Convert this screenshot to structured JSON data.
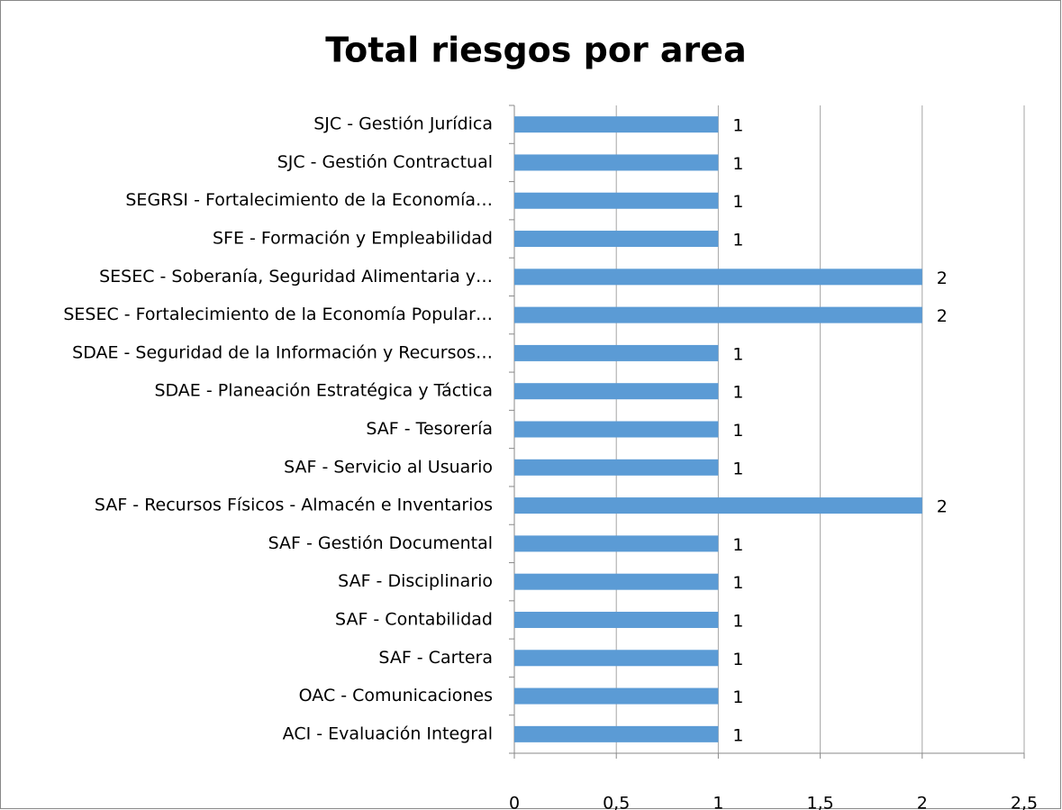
{
  "chart_data": {
    "type": "bar",
    "title": "Total riesgos por area",
    "categories": [
      "SJC - Gestión Jurídica",
      "SJC - Gestión Contractual",
      "SEGRSI - Fortalecimiento de la Economía…",
      "SFE - Formación y Empleabilidad",
      "SESEC - Soberanía, Seguridad Alimentaria y…",
      "SESEC -  Fortalecimiento de la Economía Popular…",
      "SDAE - Seguridad de la Información y Recursos…",
      "SDAE - Planeación Estratégica y Táctica",
      "SAF - Tesorería",
      "SAF - Servicio al Usuario",
      "SAF - Recursos Físicos - Almacén e Inventarios",
      "SAF - Gestión Documental",
      "SAF - Disciplinario",
      "SAF - Contabilidad",
      "SAF - Cartera",
      "OAC - Comunicaciones",
      "ACI - Evaluación Integral"
    ],
    "values": [
      1,
      1,
      1,
      1,
      2,
      2,
      1,
      1,
      1,
      1,
      2,
      1,
      1,
      1,
      1,
      1,
      1
    ],
    "color": "#5b9bd5",
    "xlim": [
      0,
      2.5
    ],
    "xticks": [
      0,
      {
        "value": 0.5,
        "label": "0,5"
      },
      1,
      {
        "value": 1.5,
        "label": "1,5"
      },
      2,
      {
        "value": 2.5,
        "label": "2,5"
      }
    ],
    "grid": true
  }
}
